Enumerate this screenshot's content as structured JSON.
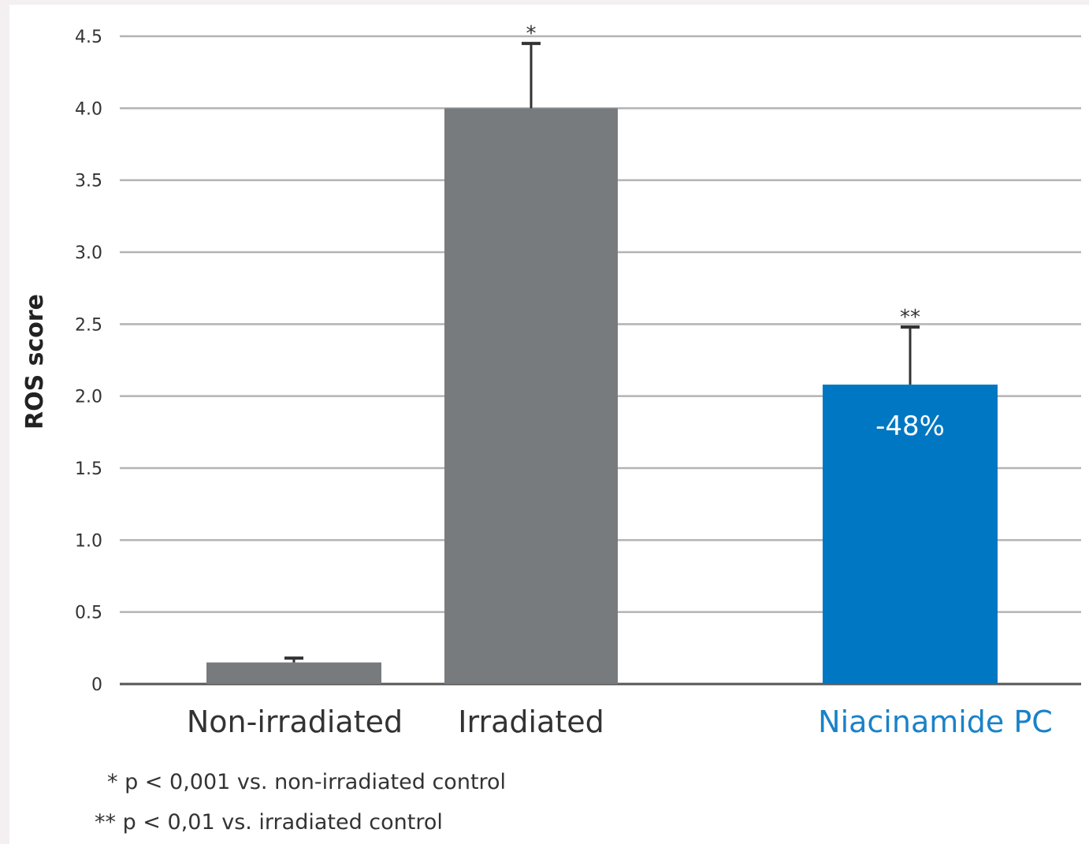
{
  "chart_data": {
    "type": "bar",
    "categories": [
      "Non-irradiated",
      "Irradiated",
      "Niacinamide PC"
    ],
    "values": [
      0.15,
      4.0,
      2.08
    ],
    "error_upper": [
      0.18,
      4.45,
      2.48
    ],
    "significance": [
      "",
      "*",
      "**"
    ],
    "data_labels": [
      "",
      "",
      "-48%"
    ],
    "bar_colors": [
      "#787b7e",
      "#787b7e",
      "#0077c2"
    ],
    "category_label_colors": [
      "#333333",
      "#333333",
      "#1a82c8"
    ],
    "ylabel": "ROS score",
    "ylim": [
      0,
      4.5
    ],
    "yticks": [
      0,
      0.5,
      1.0,
      1.5,
      2.0,
      2.5,
      3.0,
      3.5,
      4.0,
      4.5
    ],
    "ytick_labels": [
      "0",
      "0.5",
      "1.0",
      "1.5",
      "2.0",
      "2.5",
      "3.0",
      "3.5",
      "4.0",
      "4.5"
    ],
    "grid": true,
    "footnotes": [
      "* p < 0,001 vs. non-irradiated control",
      "** p < 0,01 vs. irradiated control"
    ],
    "gridline_color": "#b3b3b3",
    "axis_color": "#555555"
  }
}
